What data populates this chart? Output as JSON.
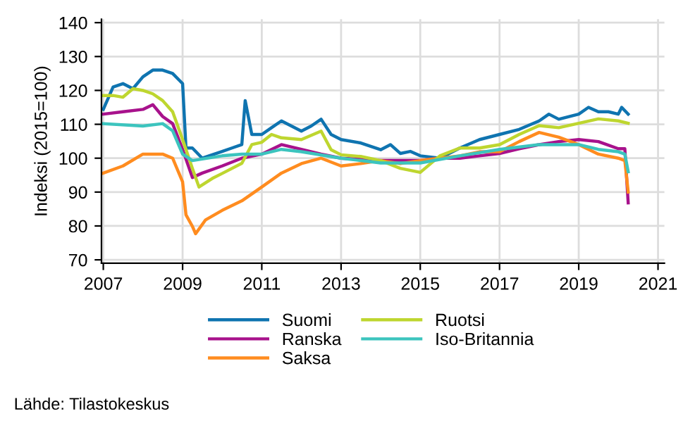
{
  "chart_data": {
    "type": "line",
    "ylabel": "Indeksi (2015=100)",
    "annotations": [
      "Lähde: Tilastokeskus"
    ],
    "xlim": [
      "2006-12-15",
      "2021-03"
    ],
    "xticks": [
      "2007",
      "2009",
      "2011",
      "2013",
      "2015",
      "2017",
      "2019",
      "2021"
    ],
    "ylim": [
      69,
      141
    ],
    "yticks": [
      70,
      80,
      90,
      100,
      110,
      120,
      130,
      140
    ],
    "grid": true,
    "legend": "bottom",
    "line_style": "solid",
    "marker": "none",
    "series": [
      {
        "name": "Suomi",
        "color": "#0f74b0",
        "x": [
          "2007-01",
          "2007-04",
          "2007-07",
          "2007-10",
          "2008-01",
          "2008-04",
          "2008-07",
          "2008-10",
          "2009-01",
          "2009-02",
          "2009-04",
          "2009-07",
          "2009-10",
          "2010-01",
          "2010-04",
          "2010-07",
          "2010-08",
          "2010-10",
          "2011-01",
          "2011-04",
          "2011-07",
          "2011-10",
          "2012-01",
          "2012-04",
          "2012-07",
          "2012-10",
          "2013-01",
          "2013-07",
          "2014-01",
          "2014-04",
          "2014-07",
          "2014-10",
          "2015-01",
          "2015-07",
          "2016-01",
          "2016-07",
          "2017-01",
          "2017-07",
          "2018-01",
          "2018-04",
          "2018-07",
          "2019-01",
          "2019-04",
          "2019-07",
          "2019-10",
          "2020-01",
          "2020-02",
          "2020-04"
        ],
        "values": [
          114.4,
          121,
          122,
          120.5,
          124,
          126,
          126,
          125,
          122,
          103,
          103,
          100,
          101,
          102,
          103,
          104,
          117,
          107,
          107,
          109,
          111,
          109.5,
          108,
          109.5,
          111.5,
          107,
          105.5,
          104.5,
          102.5,
          104,
          101.4,
          102,
          100.7,
          100,
          103,
          105.5,
          107,
          108.5,
          111,
          113,
          111.5,
          113,
          115,
          113.7,
          113.7,
          113,
          115,
          113
        ]
      },
      {
        "name": "Ranska",
        "color": "#a8128c",
        "x": [
          "2007-01",
          "2007-07",
          "2008-01",
          "2008-04",
          "2008-07",
          "2008-10",
          "2009-01",
          "2009-04",
          "2009-07",
          "2010-01",
          "2010-07",
          "2011-01",
          "2011-07",
          "2012-01",
          "2012-07",
          "2013-01",
          "2014-01",
          "2015-01",
          "2015-07",
          "2016-01",
          "2016-07",
          "2017-01",
          "2017-07",
          "2018-01",
          "2018-07",
          "2019-01",
          "2019-07",
          "2020-01",
          "2020-03",
          "2020-04"
        ],
        "values": [
          113,
          113.7,
          114.4,
          115.8,
          112.3,
          110.2,
          102.6,
          94.3,
          95.6,
          97.7,
          100,
          101.2,
          104,
          102.6,
          101.2,
          100,
          99.3,
          99.3,
          100,
          100,
          100.7,
          101.4,
          102.8,
          104,
          104.9,
          105.5,
          104.9,
          102.8,
          102.8,
          86.8
        ]
      },
      {
        "name": "Saksa",
        "color": "#ff8c1f",
        "x": [
          "2007-01",
          "2007-07",
          "2008-01",
          "2008-07",
          "2008-10",
          "2009-01",
          "2009-02",
          "2009-04",
          "2009-05",
          "2009-08",
          "2010-01",
          "2010-07",
          "2011-01",
          "2011-07",
          "2012-01",
          "2012-07",
          "2013-01",
          "2013-07",
          "2014-01",
          "2014-07",
          "2015-01",
          "2015-07",
          "2016-01",
          "2016-07",
          "2017-01",
          "2017-07",
          "2018-01",
          "2018-07",
          "2019-01",
          "2019-07",
          "2020-01",
          "2020-03",
          "2020-04"
        ],
        "values": [
          95.6,
          97.7,
          101.2,
          101.2,
          100,
          93,
          83.3,
          79.9,
          77.7,
          81.8,
          84.6,
          87.4,
          91.5,
          95.6,
          98.4,
          100,
          97.7,
          98.4,
          99.3,
          98.4,
          99.3,
          100,
          100.7,
          101.9,
          101.9,
          104.9,
          107.6,
          106.2,
          104,
          101.2,
          100,
          99.3,
          90
        ]
      },
      {
        "name": "Ruotsi",
        "color": "#bed62f",
        "x": [
          "2007-01",
          "2007-04",
          "2007-07",
          "2007-10",
          "2008-01",
          "2008-04",
          "2008-07",
          "2008-10",
          "2009-01",
          "2009-04",
          "2009-06",
          "2009-10",
          "2010-01",
          "2010-07",
          "2010-10",
          "2011-01",
          "2011-04",
          "2011-07",
          "2012-01",
          "2012-07",
          "2012-10",
          "2013-01",
          "2013-07",
          "2014-01",
          "2014-07",
          "2015-01",
          "2015-07",
          "2016-01",
          "2016-07",
          "2017-01",
          "2017-07",
          "2018-01",
          "2018-07",
          "2019-01",
          "2019-07",
          "2020-01",
          "2020-04"
        ],
        "values": [
          118.5,
          118.5,
          118,
          120.5,
          120,
          119,
          117,
          113.7,
          105.5,
          97,
          91.5,
          94,
          95.5,
          98.5,
          104,
          104.7,
          107,
          106,
          105.5,
          108,
          102.5,
          101,
          100.5,
          99.3,
          97,
          95.8,
          100.7,
          103,
          103,
          104,
          107,
          109.6,
          109,
          110.3,
          111.6,
          111,
          110.3
        ]
      },
      {
        "name": "Iso-Britannia",
        "color": "#3cc4be",
        "x": [
          "2007-01",
          "2008-01",
          "2008-07",
          "2008-10",
          "2009-01",
          "2009-04",
          "2010-01",
          "2010-07",
          "2011-01",
          "2011-07",
          "2012-01",
          "2013-01",
          "2013-07",
          "2014-01",
          "2015-01",
          "2016-01",
          "2017-01",
          "2018-01",
          "2019-01",
          "2019-07",
          "2020-01",
          "2020-03",
          "2020-04"
        ],
        "values": [
          110.2,
          109.5,
          110.2,
          108.1,
          101.2,
          99.3,
          100.7,
          101.2,
          101.2,
          102.6,
          101.9,
          100,
          99.3,
          98.6,
          98.6,
          100.7,
          102.6,
          104,
          104,
          102.6,
          101.9,
          101.2,
          96
        ]
      }
    ]
  }
}
